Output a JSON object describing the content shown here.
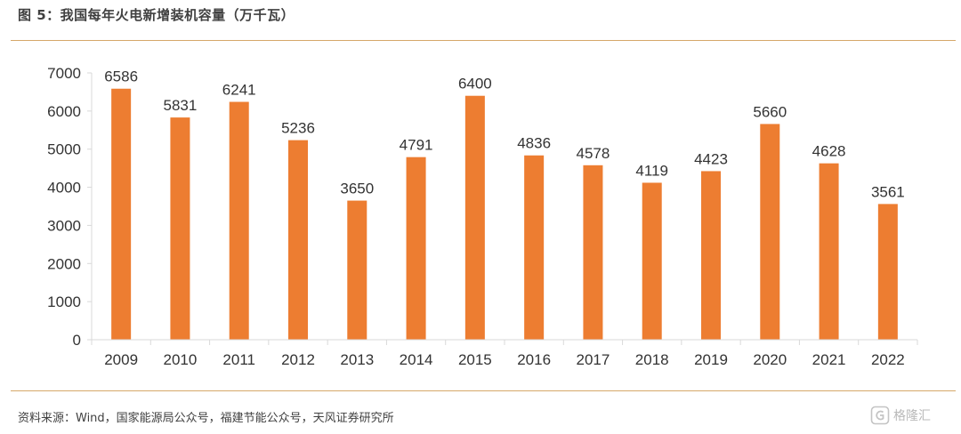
{
  "header": {
    "title": "图 5：我国每年火电新增装机容量（万千瓦）"
  },
  "footer": {
    "source": "资料来源：Wind，国家能源局公众号，福建节能公众号，天风证券研究所",
    "watermark": "格隆汇"
  },
  "colors": {
    "bar": "#ED7D31",
    "axis": "#d9d9d9",
    "text": "#333333",
    "rule": "#d6a86a"
  },
  "chart_data": {
    "type": "bar",
    "categories": [
      "2009",
      "2010",
      "2011",
      "2012",
      "2013",
      "2014",
      "2015",
      "2016",
      "2017",
      "2018",
      "2019",
      "2020",
      "2021",
      "2022"
    ],
    "values": [
      6586,
      5831,
      6241,
      5236,
      3650,
      4791,
      6400,
      4836,
      4578,
      4119,
      4423,
      5660,
      4628,
      3561
    ],
    "yticks": [
      0,
      1000,
      2000,
      3000,
      4000,
      5000,
      6000,
      7000
    ],
    "ylim": [
      0,
      7000
    ],
    "data_labels": true,
    "grid": false,
    "legend": "none"
  }
}
